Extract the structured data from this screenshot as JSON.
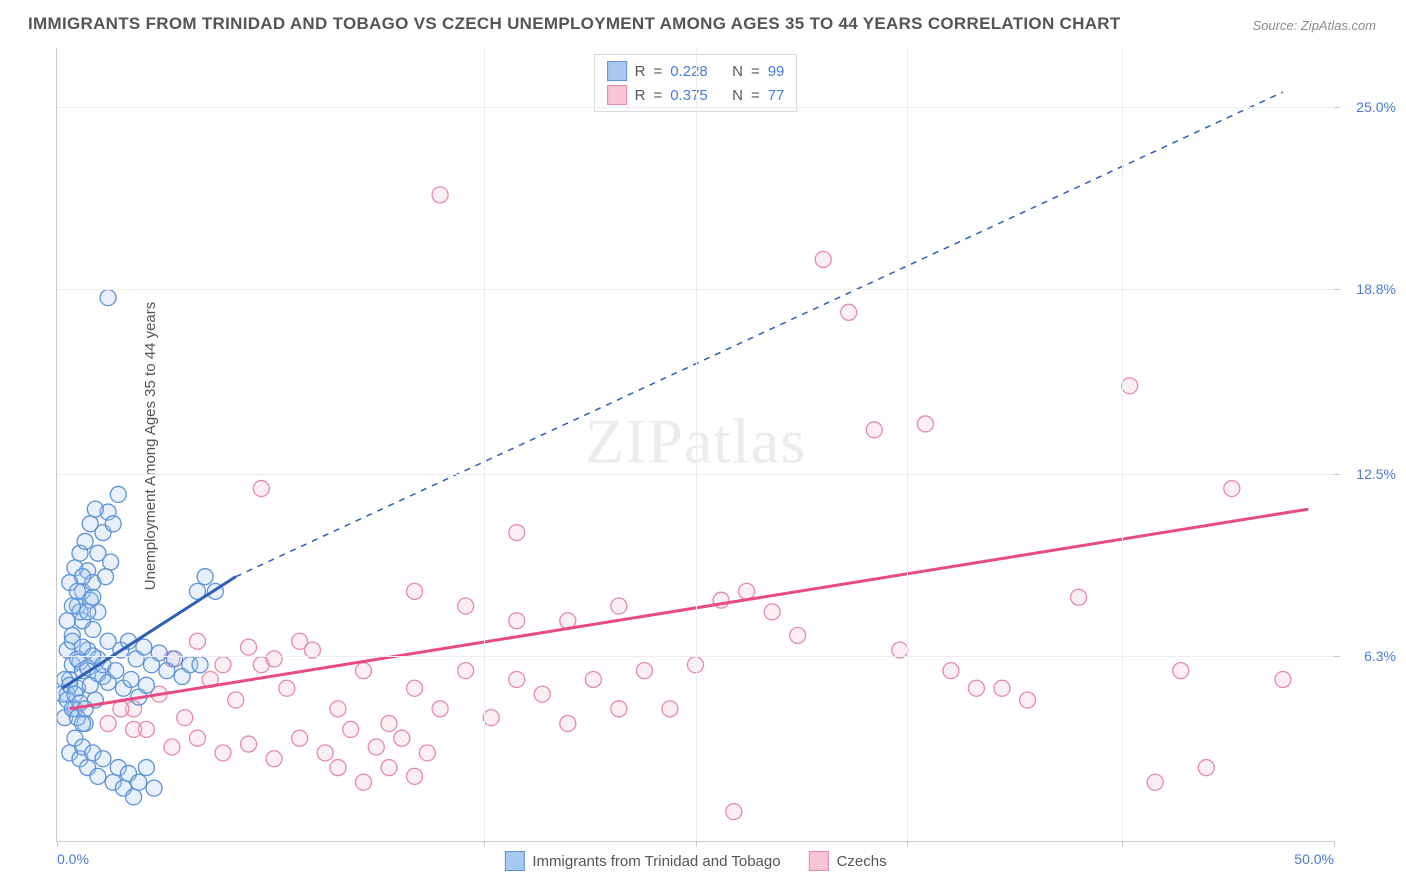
{
  "title": "IMMIGRANTS FROM TRINIDAD AND TOBAGO VS CZECH UNEMPLOYMENT AMONG AGES 35 TO 44 YEARS CORRELATION CHART",
  "source": "Source: ZipAtlas.com",
  "y_axis_label": "Unemployment Among Ages 35 to 44 years",
  "watermark": "ZIPatlas",
  "chart": {
    "type": "scatter",
    "xlim": [
      0,
      50
    ],
    "ylim": [
      0,
      27
    ],
    "x_ticks": [
      {
        "pos": 0.0,
        "label": "0.0%"
      },
      {
        "pos": 16.7,
        "label": ""
      },
      {
        "pos": 25.0,
        "label": ""
      },
      {
        "pos": 33.3,
        "label": ""
      },
      {
        "pos": 41.7,
        "label": ""
      },
      {
        "pos": 50.0,
        "label": "50.0%"
      }
    ],
    "y_ticks": [
      {
        "pos": 6.3,
        "label": "6.3%"
      },
      {
        "pos": 12.5,
        "label": "12.5%"
      },
      {
        "pos": 18.8,
        "label": "18.8%"
      },
      {
        "pos": 25.0,
        "label": "25.0%"
      }
    ],
    "background_color": "#ffffff",
    "grid_color": "#ececec",
    "axis_color": "#c9c9c9",
    "tick_label_color": "#4a7bd6",
    "marker_radius": 8,
    "marker_stroke": 1.3,
    "marker_fill_opacity": 0.28,
    "trend_solid_width": 3,
    "trend_dashed_width": 1.5,
    "trend_dash": "6,6",
    "series": [
      {
        "key": "trinidad",
        "label": "Immigrants from Trinidad and Tobago",
        "color_stroke": "#5d93d6",
        "color_fill": "#a9c8ef",
        "trend_color": "#2f5fb3",
        "r": "0.228",
        "n": "99",
        "trend_solid": {
          "x1": 0.2,
          "y1": 5.2,
          "x2": 7.0,
          "y2": 9.0
        },
        "trend_dashed": {
          "x1": 7.0,
          "y1": 9.0,
          "x2": 48.0,
          "y2": 25.5
        },
        "points": [
          [
            0.3,
            4.2
          ],
          [
            0.4,
            5.0
          ],
          [
            0.5,
            5.5
          ],
          [
            0.6,
            6.0
          ],
          [
            0.7,
            4.5
          ],
          [
            0.8,
            5.2
          ],
          [
            0.9,
            6.1
          ],
          [
            1.0,
            5.8
          ],
          [
            1.1,
            4.0
          ],
          [
            1.2,
            6.5
          ],
          [
            1.3,
            5.3
          ],
          [
            1.4,
            7.2
          ],
          [
            1.5,
            4.8
          ],
          [
            1.6,
            6.2
          ],
          [
            1.8,
            5.6
          ],
          [
            2.0,
            6.8
          ],
          [
            0.5,
            3.0
          ],
          [
            0.7,
            3.5
          ],
          [
            0.9,
            2.8
          ],
          [
            1.0,
            3.2
          ],
          [
            1.2,
            2.5
          ],
          [
            1.4,
            3.0
          ],
          [
            1.6,
            2.2
          ],
          [
            1.8,
            2.8
          ],
          [
            2.2,
            2.0
          ],
          [
            2.4,
            2.5
          ],
          [
            2.6,
            1.8
          ],
          [
            2.8,
            2.3
          ],
          [
            3.0,
            1.5
          ],
          [
            3.2,
            2.0
          ],
          [
            3.5,
            2.5
          ],
          [
            3.8,
            1.8
          ],
          [
            0.8,
            8.0
          ],
          [
            1.0,
            8.5
          ],
          [
            1.2,
            9.2
          ],
          [
            1.4,
            8.8
          ],
          [
            1.6,
            9.8
          ],
          [
            1.8,
            10.5
          ],
          [
            2.0,
            11.2
          ],
          [
            2.2,
            10.8
          ],
          [
            2.4,
            11.8
          ],
          [
            1.0,
            7.5
          ],
          [
            1.3,
            8.2
          ],
          [
            1.6,
            7.8
          ],
          [
            1.9,
            9.0
          ],
          [
            2.1,
            9.5
          ],
          [
            0.6,
            7.0
          ],
          [
            0.9,
            7.8
          ],
          [
            0.4,
            6.5
          ],
          [
            0.6,
            6.8
          ],
          [
            0.8,
            6.2
          ],
          [
            1.0,
            6.6
          ],
          [
            1.2,
            5.9
          ],
          [
            1.4,
            6.3
          ],
          [
            1.6,
            5.7
          ],
          [
            1.8,
            6.0
          ],
          [
            2.0,
            5.4
          ],
          [
            2.3,
            5.8
          ],
          [
            2.6,
            5.2
          ],
          [
            2.9,
            5.5
          ],
          [
            3.2,
            4.9
          ],
          [
            3.5,
            5.3
          ],
          [
            0.2,
            5.0
          ],
          [
            0.3,
            5.5
          ],
          [
            0.4,
            4.8
          ],
          [
            0.5,
            5.3
          ],
          [
            0.6,
            4.5
          ],
          [
            0.7,
            5.0
          ],
          [
            0.8,
            4.2
          ],
          [
            0.9,
            4.7
          ],
          [
            1.0,
            4.0
          ],
          [
            1.1,
            4.5
          ],
          [
            2.0,
            18.5
          ],
          [
            5.5,
            8.5
          ],
          [
            5.8,
            9.0
          ],
          [
            6.2,
            8.5
          ],
          [
            0.5,
            8.8
          ],
          [
            0.7,
            9.3
          ],
          [
            0.9,
            9.8
          ],
          [
            1.1,
            10.2
          ],
          [
            1.3,
            10.8
          ],
          [
            1.5,
            11.3
          ],
          [
            0.4,
            7.5
          ],
          [
            0.6,
            8.0
          ],
          [
            0.8,
            8.5
          ],
          [
            1.0,
            9.0
          ],
          [
            1.2,
            7.8
          ],
          [
            1.4,
            8.3
          ],
          [
            2.5,
            6.5
          ],
          [
            2.8,
            6.8
          ],
          [
            3.1,
            6.2
          ],
          [
            3.4,
            6.6
          ],
          [
            3.7,
            6.0
          ],
          [
            4.0,
            6.4
          ],
          [
            4.3,
            5.8
          ],
          [
            4.6,
            6.2
          ],
          [
            4.9,
            5.6
          ],
          [
            5.2,
            6.0
          ],
          [
            5.6,
            6.0
          ]
        ]
      },
      {
        "key": "czechs",
        "label": "Czechs",
        "color_stroke": "#e68aa8",
        "color_fill": "#f6c6d6",
        "trend_color": "#e84b84",
        "r": "0.375",
        "n": "77",
        "trend_solid": {
          "x1": 0.5,
          "y1": 4.5,
          "x2": 49.0,
          "y2": 11.3
        },
        "trend_dashed": null,
        "points": [
          [
            3.0,
            4.5
          ],
          [
            4.0,
            5.0
          ],
          [
            5.0,
            4.2
          ],
          [
            6.0,
            5.5
          ],
          [
            7.0,
            4.8
          ],
          [
            8.0,
            6.0
          ],
          [
            9.0,
            5.2
          ],
          [
            10.0,
            6.5
          ],
          [
            11.0,
            4.5
          ],
          [
            12.0,
            5.8
          ],
          [
            13.0,
            4.0
          ],
          [
            14.0,
            5.2
          ],
          [
            15.0,
            4.5
          ],
          [
            16.0,
            5.8
          ],
          [
            17.0,
            4.2
          ],
          [
            18.0,
            5.5
          ],
          [
            8.0,
            12.0
          ],
          [
            15.0,
            22.0
          ],
          [
            18.0,
            10.5
          ],
          [
            20.0,
            7.5
          ],
          [
            22.0,
            8.0
          ],
          [
            24.0,
            4.5
          ],
          [
            26.0,
            8.2
          ],
          [
            28.0,
            7.8
          ],
          [
            30.0,
            19.8
          ],
          [
            32.0,
            14.0
          ],
          [
            34.0,
            14.2
          ],
          [
            36.0,
            5.2
          ],
          [
            38.0,
            4.8
          ],
          [
            40.0,
            8.3
          ],
          [
            42.0,
            15.5
          ],
          [
            44.0,
            5.8
          ],
          [
            46.0,
            12.0
          ],
          [
            48.0,
            5.5
          ],
          [
            9.5,
            3.5
          ],
          [
            10.5,
            3.0
          ],
          [
            11.5,
            3.8
          ],
          [
            12.5,
            3.2
          ],
          [
            13.5,
            3.5
          ],
          [
            14.5,
            3.0
          ],
          [
            4.5,
            6.2
          ],
          [
            5.5,
            6.8
          ],
          [
            6.5,
            6.0
          ],
          [
            7.5,
            6.6
          ],
          [
            8.5,
            6.2
          ],
          [
            9.5,
            6.8
          ],
          [
            19.0,
            5.0
          ],
          [
            21.0,
            5.5
          ],
          [
            23.0,
            5.8
          ],
          [
            25.0,
            6.0
          ],
          [
            27.0,
            8.5
          ],
          [
            29.0,
            7.0
          ],
          [
            31.0,
            18.0
          ],
          [
            33.0,
            6.5
          ],
          [
            35.0,
            5.8
          ],
          [
            37.0,
            5.2
          ],
          [
            26.5,
            1.0
          ],
          [
            11.0,
            2.5
          ],
          [
            12.0,
            2.0
          ],
          [
            13.0,
            2.5
          ],
          [
            14.0,
            2.2
          ],
          [
            3.5,
            3.8
          ],
          [
            4.5,
            3.2
          ],
          [
            5.5,
            3.5
          ],
          [
            6.5,
            3.0
          ],
          [
            7.5,
            3.3
          ],
          [
            8.5,
            2.8
          ],
          [
            20.0,
            4.0
          ],
          [
            22.0,
            4.5
          ],
          [
            14.0,
            8.5
          ],
          [
            16.0,
            8.0
          ],
          [
            18.0,
            7.5
          ],
          [
            2.0,
            4.0
          ],
          [
            2.5,
            4.5
          ],
          [
            3.0,
            3.8
          ],
          [
            45.0,
            2.5
          ],
          [
            43.0,
            2.0
          ]
        ]
      }
    ]
  },
  "legend_top": {
    "r_prefix": "R",
    "n_prefix": "N",
    "eq": "="
  }
}
